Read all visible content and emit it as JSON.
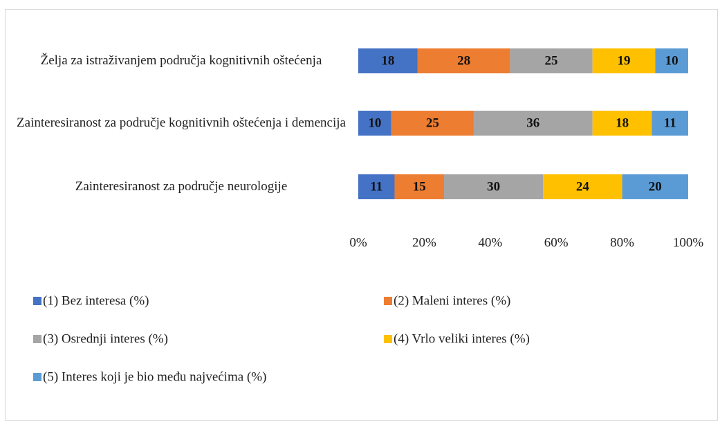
{
  "chart_data": {
    "type": "stacked_bar_horizontal",
    "categories": [
      "Želja za istraživanjem područja kognitivnih oštećenja",
      "Zainteresiranost za područje kognitivnih oštećenja i demencija",
      "Zainteresiranost za područje neurologije"
    ],
    "series": [
      {
        "name": "(1) Bez interesa (%)",
        "color": "#4472c4",
        "values": [
          18,
          10,
          11
        ]
      },
      {
        "name": "(2) Maleni interes (%)",
        "color": "#ed7d31",
        "values": [
          28,
          25,
          15
        ]
      },
      {
        "name": "(3) Osrednji interes (%)",
        "color": "#a5a5a5",
        "values": [
          25,
          36,
          30
        ]
      },
      {
        "name": "(4) Vrlo veliki interes (%)",
        "color": "#ffc000",
        "values": [
          19,
          18,
          24
        ]
      },
      {
        "name": "(5) Interes koji je bio među najvećima (%)",
        "color": "#5b9bd5",
        "values": [
          10,
          11,
          20
        ]
      }
    ],
    "xlim": [
      0,
      100
    ],
    "xticks": [
      {
        "value": 0,
        "label": "0%"
      },
      {
        "value": 20,
        "label": "20%"
      },
      {
        "value": 40,
        "label": "40%"
      },
      {
        "value": 60,
        "label": "60%"
      },
      {
        "value": 80,
        "label": "80%"
      },
      {
        "value": 100,
        "label": "100%"
      }
    ],
    "legend": "bottom"
  }
}
